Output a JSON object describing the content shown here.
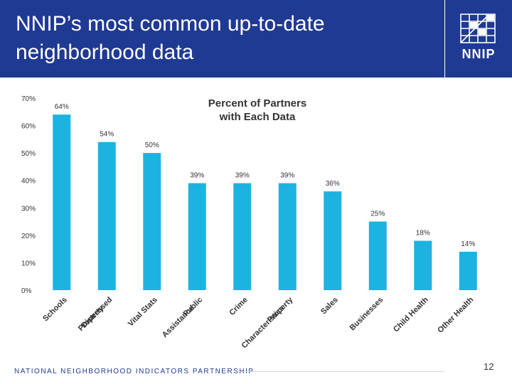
{
  "header": {
    "title": "NNIP’s most common up-to-date neighborhood data",
    "logo_text": "NNIP"
  },
  "footer": {
    "org_name": "NATIONAL NEIGHBORHOOD INDICATORS PARTNERSHIP",
    "page_number": "12"
  },
  "colors": {
    "header_bg": "#1f3a93",
    "bar": "#1db3e0",
    "text": "#333333"
  },
  "chart_data": {
    "type": "bar",
    "title": "Percent of Partners with Each Data",
    "title_lines": [
      "Percent of Partners",
      "with Each Data"
    ],
    "categories": [
      "Schools",
      "Distressed Property",
      "Vital Stats",
      "Public Assistance",
      "Crime",
      "Property Characteristics",
      "Sales",
      "Businesses",
      "Child Health",
      "Other Health"
    ],
    "category_lines": [
      [
        "Schools"
      ],
      [
        "Distressed",
        "Property"
      ],
      [
        "Vital Stats"
      ],
      [
        "Public",
        "Assistance"
      ],
      [
        "Crime"
      ],
      [
        "Property",
        "Characteristics"
      ],
      [
        "Sales"
      ],
      [
        "Businesses"
      ],
      [
        "Child Health"
      ],
      [
        "Other Health"
      ]
    ],
    "values": [
      64,
      54,
      50,
      39,
      39,
      39,
      36,
      25,
      18,
      14
    ],
    "value_labels": [
      "64%",
      "54%",
      "50%",
      "39%",
      "39%",
      "39%",
      "36%",
      "25%",
      "18%",
      "14%"
    ],
    "yticks": [
      "0%",
      "10%",
      "20%",
      "30%",
      "40%",
      "50%",
      "60%",
      "70%"
    ],
    "ylim": [
      0,
      70
    ],
    "xlabel": "",
    "ylabel": "",
    "grid": false,
    "legend": "none"
  }
}
